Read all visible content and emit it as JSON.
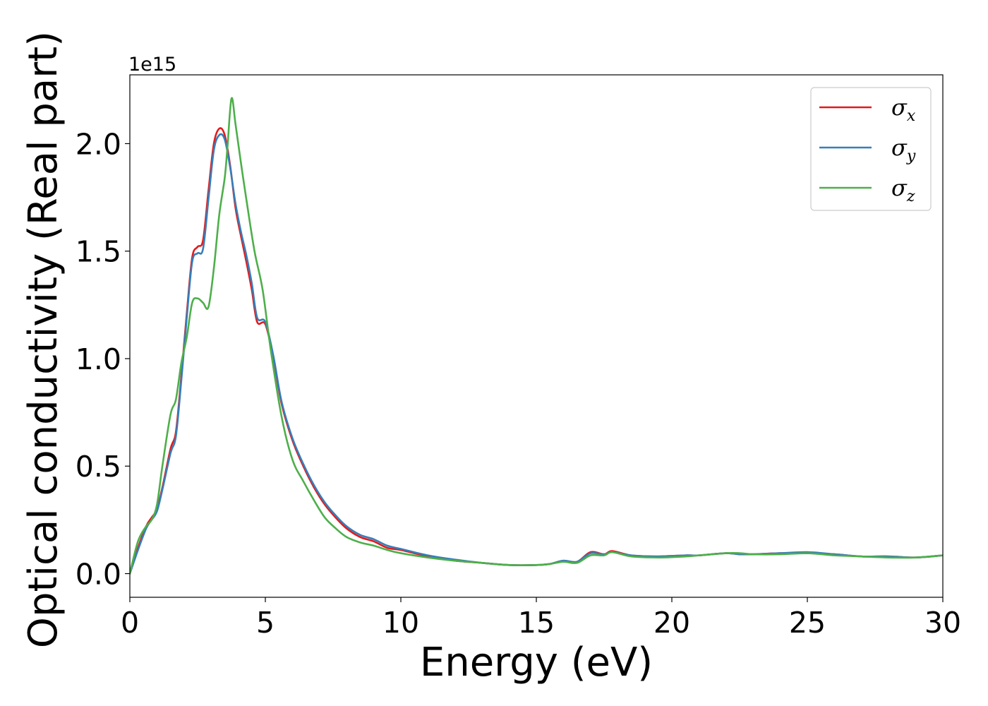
{
  "chart_data": {
    "type": "line",
    "title": "",
    "xlabel": "Energy (eV)",
    "ylabel": "Optical conductivity (Real part)",
    "y_offset_label": "1e15",
    "xlim": [
      0,
      30
    ],
    "ylim": [
      -0.11,
      2.32
    ],
    "x_ticks": [
      0,
      5,
      10,
      15,
      20,
      25,
      30
    ],
    "x_tick_labels": [
      "0",
      "5",
      "10",
      "15",
      "20",
      "25",
      "30"
    ],
    "y_ticks": [
      0.0,
      0.5,
      1.0,
      1.5,
      2.0
    ],
    "y_tick_labels": [
      "0.0",
      "0.5",
      "1.0",
      "1.5",
      "2.0"
    ],
    "grid": false,
    "legend_position": "top-right",
    "series": [
      {
        "name": "σx",
        "legend_main": "σ",
        "legend_sub": "x",
        "color": "#e41a1c",
        "x": [
          0,
          0.3,
          0.6,
          0.8,
          1.0,
          1.2,
          1.5,
          1.7,
          1.9,
          2.1,
          2.3,
          2.5,
          2.7,
          2.9,
          3.1,
          3.3,
          3.5,
          3.7,
          3.9,
          4.1,
          4.3,
          4.5,
          4.7,
          5.0,
          5.3,
          5.6,
          6.0,
          6.4,
          6.8,
          7.2,
          7.6,
          8.0,
          8.5,
          9.0,
          9.5,
          10,
          11,
          12,
          13,
          14,
          15,
          15.5,
          16,
          16.5,
          17,
          17.5,
          17.8,
          18.5,
          19.5,
          20.5,
          21,
          22,
          22.5,
          23,
          24,
          25,
          26,
          27,
          28,
          29,
          30
        ],
        "y": [
          0,
          0.12,
          0.22,
          0.26,
          0.3,
          0.4,
          0.58,
          0.66,
          0.92,
          1.21,
          1.47,
          1.52,
          1.55,
          1.78,
          2.0,
          2.07,
          2.04,
          1.9,
          1.7,
          1.57,
          1.45,
          1.32,
          1.17,
          1.16,
          1.0,
          0.79,
          0.62,
          0.5,
          0.4,
          0.32,
          0.26,
          0.21,
          0.17,
          0.15,
          0.12,
          0.11,
          0.08,
          0.06,
          0.05,
          0.04,
          0.04,
          0.045,
          0.06,
          0.055,
          0.1,
          0.09,
          0.105,
          0.085,
          0.08,
          0.085,
          0.085,
          0.095,
          0.09,
          0.09,
          0.095,
          0.095,
          0.09,
          0.08,
          0.08,
          0.075,
          0.085
        ]
      },
      {
        "name": "σy",
        "legend_main": "σ",
        "legend_sub": "y",
        "color": "#377eb8",
        "x": [
          0,
          0.3,
          0.6,
          0.8,
          1.0,
          1.2,
          1.5,
          1.7,
          1.9,
          2.1,
          2.3,
          2.5,
          2.7,
          2.9,
          3.1,
          3.3,
          3.5,
          3.7,
          3.9,
          4.1,
          4.3,
          4.5,
          4.7,
          5.0,
          5.3,
          5.6,
          6.0,
          6.4,
          6.8,
          7.2,
          7.6,
          8.0,
          8.5,
          9.0,
          9.5,
          10,
          11,
          12,
          13,
          14,
          15,
          15.5,
          16,
          16.5,
          17,
          17.5,
          17.8,
          18.5,
          19.5,
          20.5,
          21,
          22,
          22.5,
          23,
          24,
          25,
          26,
          27,
          28,
          29,
          30
        ],
        "y": [
          0,
          0.11,
          0.21,
          0.25,
          0.29,
          0.39,
          0.56,
          0.64,
          0.9,
          1.19,
          1.45,
          1.49,
          1.51,
          1.74,
          1.97,
          2.04,
          2.02,
          1.89,
          1.72,
          1.59,
          1.48,
          1.35,
          1.19,
          1.17,
          1.01,
          0.8,
          0.63,
          0.51,
          0.41,
          0.33,
          0.27,
          0.22,
          0.18,
          0.16,
          0.13,
          0.115,
          0.085,
          0.065,
          0.05,
          0.04,
          0.04,
          0.045,
          0.06,
          0.055,
          0.095,
          0.09,
          0.1,
          0.085,
          0.08,
          0.085,
          0.085,
          0.095,
          0.09,
          0.09,
          0.095,
          0.1,
          0.09,
          0.08,
          0.08,
          0.075,
          0.085
        ]
      },
      {
        "name": "σz",
        "legend_main": "σ",
        "legend_sub": "z",
        "color": "#4daf4a",
        "x": [
          0,
          0.3,
          0.6,
          0.8,
          1.0,
          1.2,
          1.5,
          1.7,
          1.9,
          2.1,
          2.3,
          2.5,
          2.7,
          2.9,
          3.1,
          3.3,
          3.5,
          3.6,
          3.75,
          3.9,
          4.1,
          4.3,
          4.6,
          4.9,
          5.2,
          5.6,
          6.0,
          6.4,
          6.8,
          7.2,
          7.6,
          8.0,
          8.5,
          9.0,
          9.5,
          10,
          11,
          12,
          13,
          14,
          15,
          15.5,
          16,
          16.5,
          17,
          17.5,
          17.8,
          18.5,
          19.5,
          20.5,
          21,
          22,
          22.5,
          23,
          24,
          25,
          26,
          27,
          28,
          29,
          30
        ],
        "y": [
          0,
          0.15,
          0.22,
          0.25,
          0.32,
          0.5,
          0.74,
          0.81,
          0.98,
          1.1,
          1.26,
          1.28,
          1.26,
          1.24,
          1.42,
          1.67,
          1.84,
          1.98,
          2.21,
          2.09,
          1.91,
          1.74,
          1.5,
          1.32,
          1.04,
          0.73,
          0.53,
          0.43,
          0.34,
          0.26,
          0.21,
          0.17,
          0.145,
          0.13,
          0.11,
          0.095,
          0.075,
          0.06,
          0.05,
          0.04,
          0.04,
          0.045,
          0.055,
          0.05,
          0.085,
          0.085,
          0.1,
          0.08,
          0.075,
          0.08,
          0.085,
          0.095,
          0.095,
          0.09,
          0.09,
          0.095,
          0.085,
          0.08,
          0.075,
          0.075,
          0.085
        ]
      }
    ]
  }
}
